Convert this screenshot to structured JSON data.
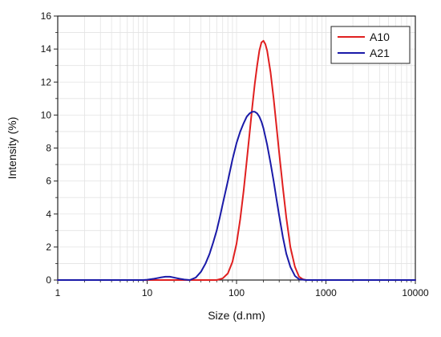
{
  "chart_data": {
    "type": "line",
    "xlabel": "Size (d.nm)",
    "ylabel": "Intensity (%)",
    "xscale": "log",
    "xlim": [
      1,
      10000
    ],
    "ylim": [
      0,
      16
    ],
    "x_ticks": [
      1,
      10,
      100,
      1000,
      10000
    ],
    "x_tick_labels": [
      "1",
      "10",
      "100",
      "1000",
      "10000"
    ],
    "y_ticks": [
      0,
      2,
      4,
      6,
      8,
      10,
      12,
      14,
      16
    ],
    "y_tick_labels": [
      "0",
      "2",
      "4",
      "6",
      "8",
      "10",
      "12",
      "14",
      "16"
    ],
    "grid": true,
    "legend_position": "top-right",
    "series": [
      {
        "name": "A10",
        "color": "#e02020",
        "x": [
          1,
          40,
          60,
          70,
          80,
          90,
          100,
          110,
          120,
          130,
          140,
          150,
          160,
          170,
          180,
          190,
          200,
          210,
          220,
          240,
          260,
          280,
          300,
          330,
          360,
          400,
          450,
          500,
          550,
          600,
          10000
        ],
        "y": [
          0,
          0,
          0,
          0.1,
          0.4,
          1.1,
          2.2,
          3.7,
          5.4,
          7.2,
          8.9,
          10.5,
          11.9,
          13.0,
          13.9,
          14.4,
          14.5,
          14.3,
          13.9,
          12.6,
          11.0,
          9.3,
          7.7,
          5.6,
          3.8,
          2.0,
          0.8,
          0.2,
          0.05,
          0,
          0
        ]
      },
      {
        "name": "A21",
        "color": "#1a1aa8",
        "x": [
          1,
          9,
          10,
          12,
          14,
          16,
          18,
          20,
          23,
          26,
          30,
          35,
          40,
          45,
          50,
          55,
          60,
          65,
          70,
          80,
          90,
          100,
          110,
          120,
          130,
          140,
          150,
          160,
          170,
          180,
          190,
          200,
          220,
          240,
          260,
          280,
          300,
          330,
          360,
          400,
          450,
          500,
          600,
          10000
        ],
        "y": [
          0,
          0,
          0.02,
          0.08,
          0.15,
          0.2,
          0.2,
          0.15,
          0.08,
          0.03,
          0,
          0.15,
          0.5,
          1.0,
          1.6,
          2.3,
          3.0,
          3.8,
          4.6,
          6.0,
          7.3,
          8.3,
          9.0,
          9.5,
          9.9,
          10.1,
          10.2,
          10.2,
          10.1,
          9.9,
          9.6,
          9.2,
          8.2,
          7.1,
          6.0,
          4.9,
          3.9,
          2.6,
          1.6,
          0.8,
          0.25,
          0.05,
          0,
          0
        ]
      }
    ]
  }
}
